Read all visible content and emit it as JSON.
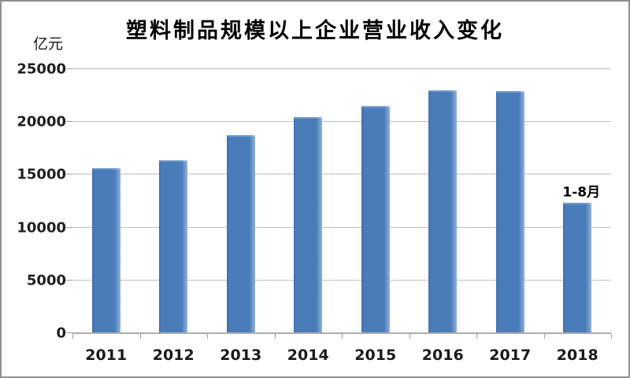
{
  "chart_data": {
    "type": "bar",
    "title": "塑料制品规模以上企业营业收入变化",
    "unit_label": "亿元",
    "xlabel": "",
    "ylabel": "亿元",
    "categories": [
      "2011",
      "2012",
      "2013",
      "2014",
      "2015",
      "2016",
      "2017",
      "2018"
    ],
    "values": [
      15550,
      16330,
      18680,
      20390,
      21430,
      22950,
      22820,
      12280
    ],
    "annotation": {
      "text": "1-8月",
      "category": "2018"
    },
    "ylim": [
      0,
      25000
    ],
    "ytick_step": 5000,
    "ytick_labels": [
      "0",
      "5000",
      "10000",
      "15000",
      "20000",
      "25000"
    ],
    "grid": true,
    "legend": "none",
    "bar_color": "#4a7cba",
    "bar_highlight_color": "#8fb0d8",
    "gridline_color": "#bfbfbf",
    "axis_color": "#aeaeae",
    "text_color": "#1a1a1a"
  }
}
